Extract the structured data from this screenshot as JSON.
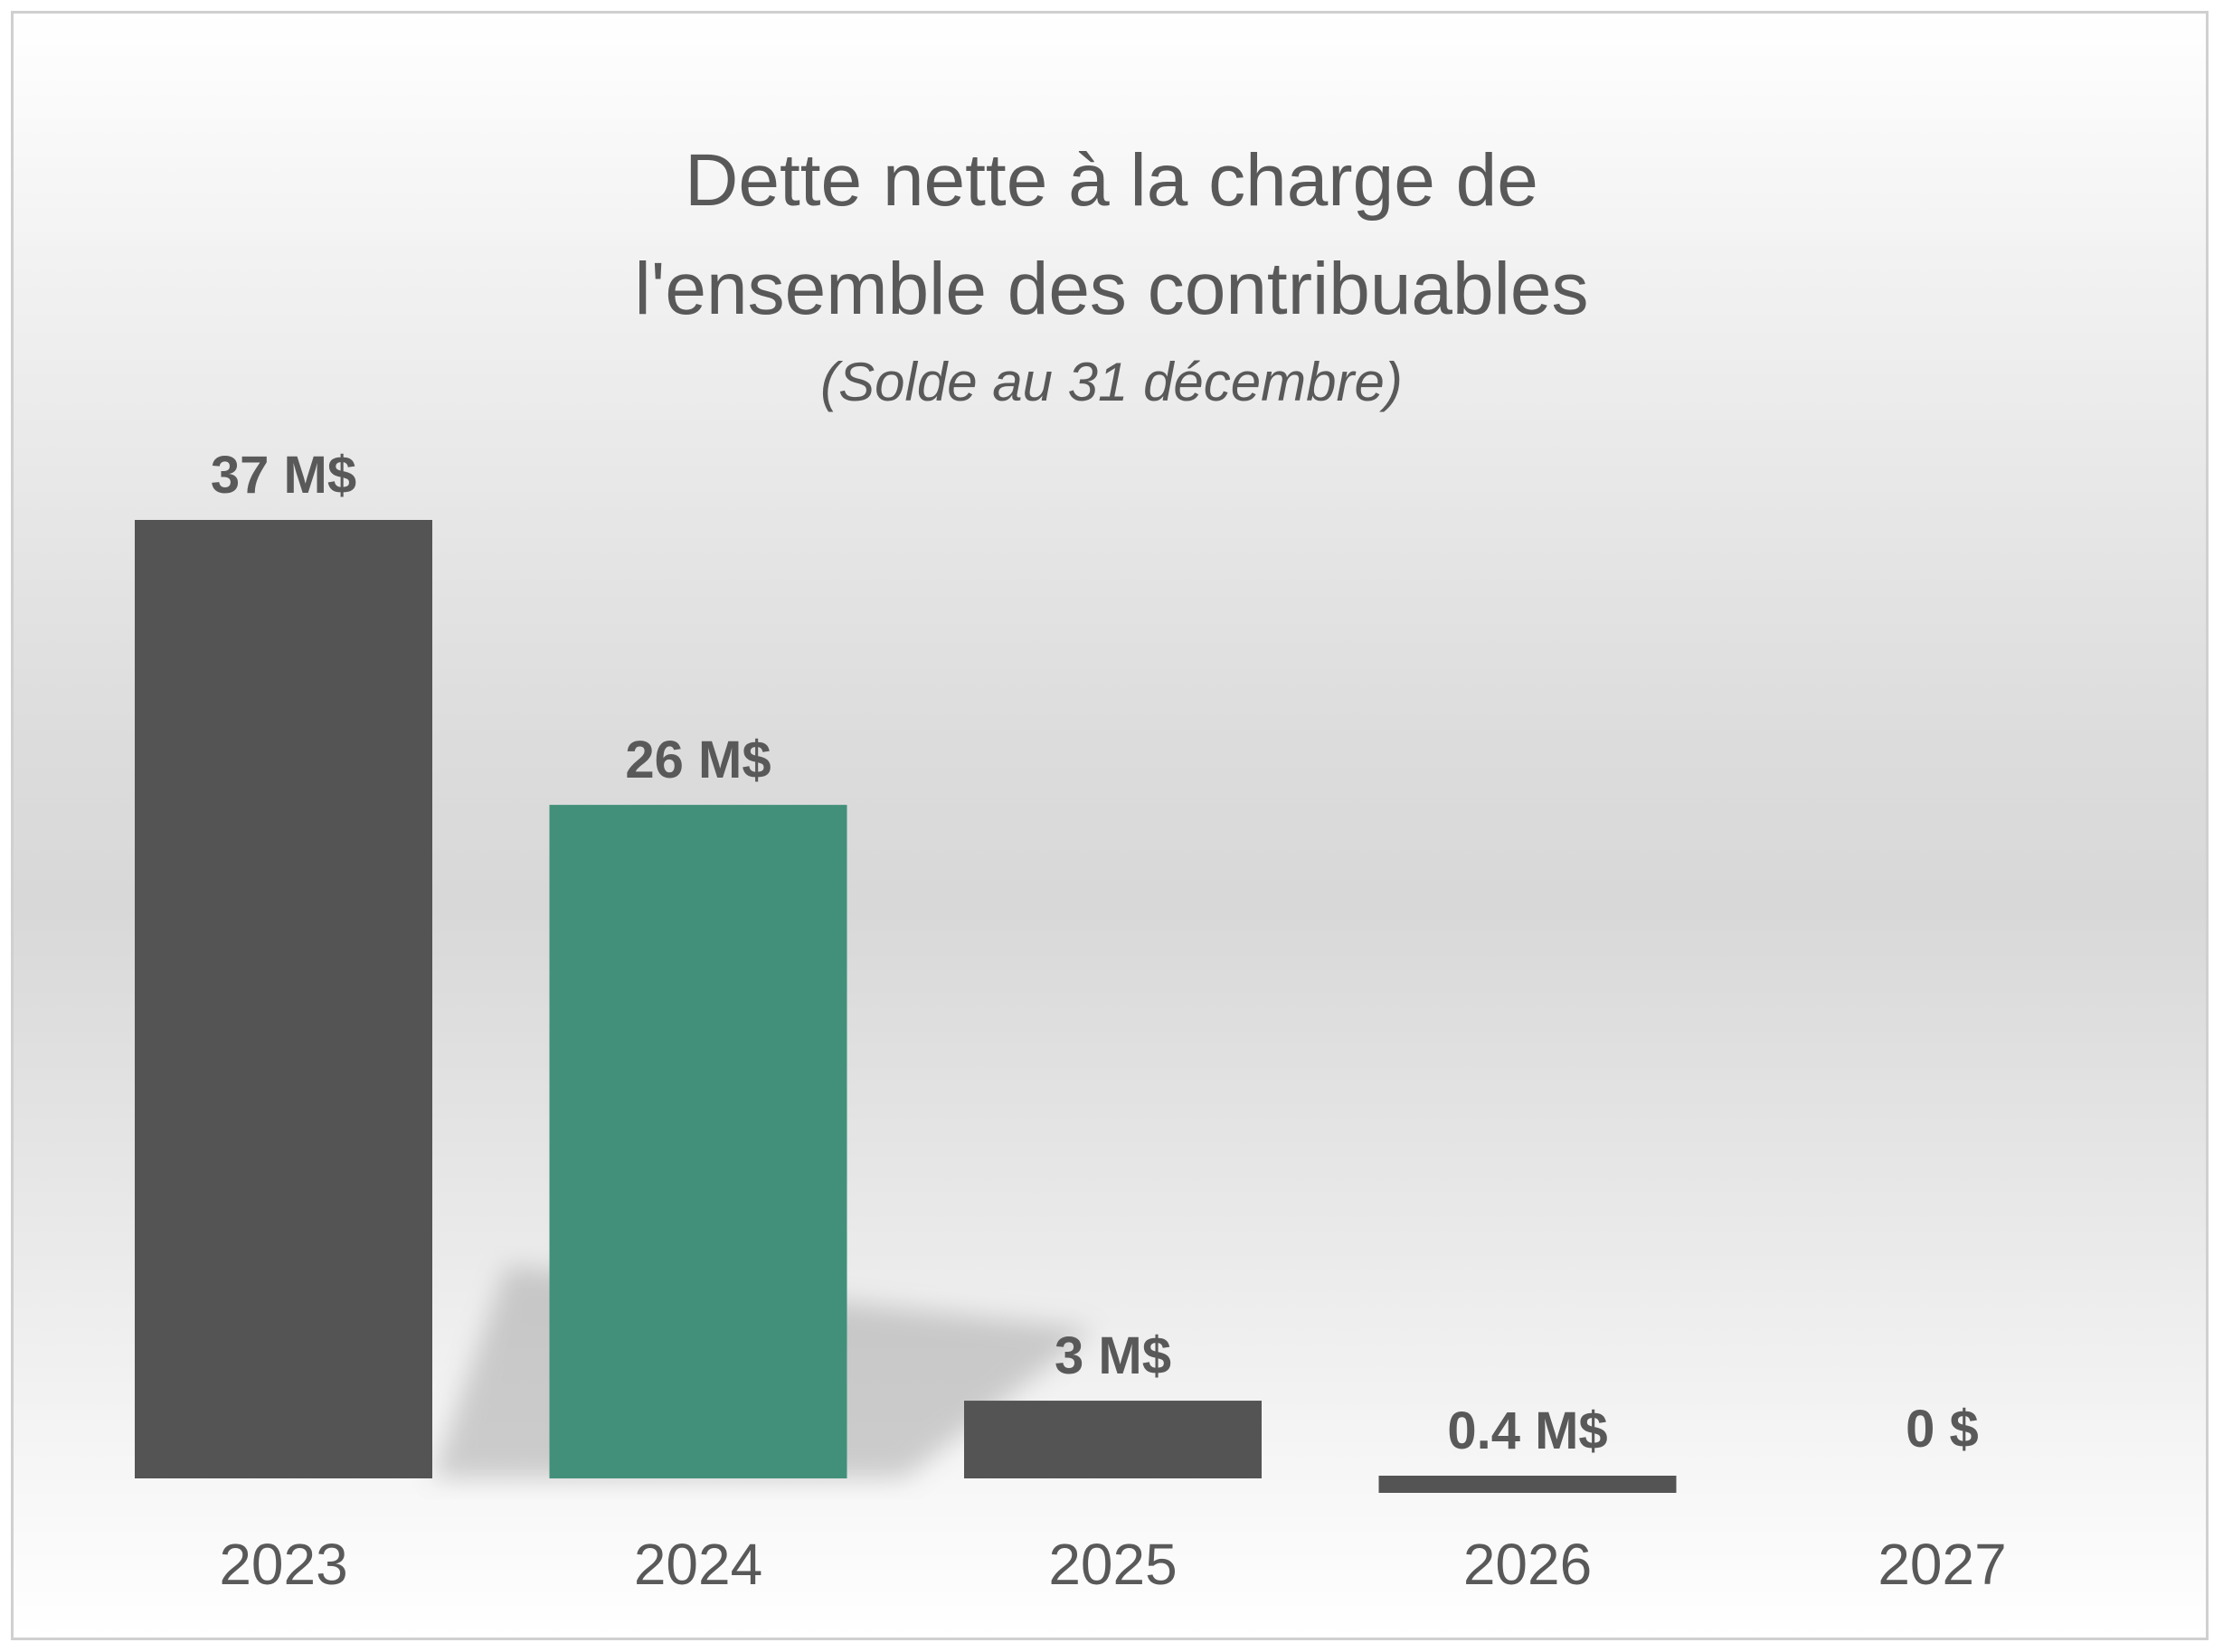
{
  "chart_data": {
    "type": "bar",
    "title_line1": "Dette nette à la charge de",
    "title_line2": "l'ensemble des contribuables",
    "subtitle": "(Solde au 31 décembre)",
    "categories": [
      "2023",
      "2024",
      "2025",
      "2026",
      "2027"
    ],
    "values": [
      37,
      26,
      3,
      0.4,
      0
    ],
    "data_labels": [
      "37 M$",
      "26 M$",
      "3 M$",
      "0.4 M$",
      "0 $"
    ],
    "colors": [
      "#545454",
      "#42907A",
      "#545454",
      "#545454",
      "#545454"
    ],
    "unit": "M$",
    "xlabel": "",
    "ylabel": "",
    "ylim": [
      0,
      37
    ],
    "grid": false,
    "legend": "none"
  }
}
